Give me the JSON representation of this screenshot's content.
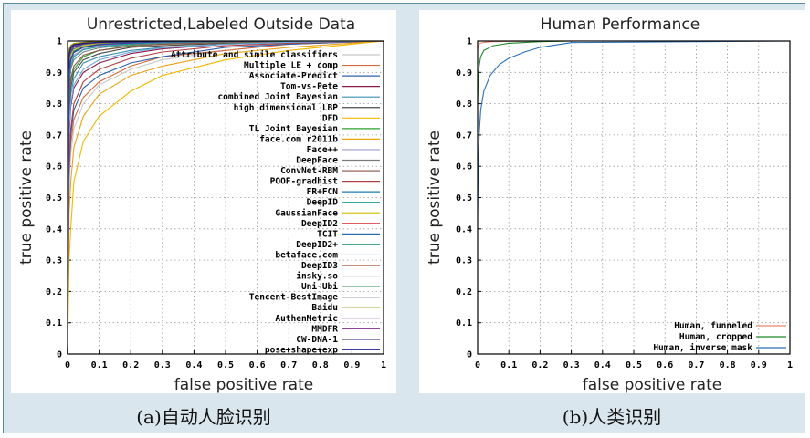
{
  "captions": {
    "a": "(a)自动人脸识别",
    "b": "(b)人类识别"
  },
  "chart_data": [
    {
      "type": "line",
      "title": "Unrestricted,Labeled Outside Data",
      "xlabel": "false positive rate",
      "ylabel": "true positive rate",
      "xlim": [
        0,
        1
      ],
      "ylim": [
        0,
        1
      ],
      "x_ticks": [
        "0",
        "0.1",
        "0.2",
        "0.3",
        "0.4",
        "0.5",
        "0.6",
        "0.7",
        "0.8",
        "0.9",
        "1"
      ],
      "y_ticks": [
        "0",
        "0.1",
        "0.2",
        "0.3",
        "0.4",
        "0.5",
        "0.6",
        "0.7",
        "0.8",
        "0.9",
        "1"
      ],
      "grid": true,
      "legend_position": "right",
      "series": [
        {
          "name": "Attribute and simile classifiers",
          "color": "#c8c8c8",
          "x": [
            0,
            0.005,
            0.01,
            0.02,
            0.05,
            0.1,
            0.2,
            0.3,
            0.5,
            0.7,
            1
          ],
          "y": [
            0,
            0.55,
            0.64,
            0.72,
            0.8,
            0.86,
            0.91,
            0.94,
            0.97,
            0.99,
            1
          ]
        },
        {
          "name": "Multiple LE + comp",
          "color": "#d46a3c",
          "x": [
            0,
            0.005,
            0.01,
            0.02,
            0.05,
            0.1,
            0.2,
            0.3,
            0.5,
            0.7,
            1
          ],
          "y": [
            0,
            0.58,
            0.67,
            0.75,
            0.82,
            0.87,
            0.92,
            0.95,
            0.97,
            0.99,
            1
          ]
        },
        {
          "name": "Associate-Predict",
          "color": "#2f5fa8",
          "x": [
            0,
            0.005,
            0.01,
            0.02,
            0.05,
            0.1,
            0.2,
            0.3,
            0.5,
            0.7,
            1
          ],
          "y": [
            0,
            0.6,
            0.7,
            0.78,
            0.85,
            0.89,
            0.93,
            0.95,
            0.98,
            0.99,
            1
          ]
        },
        {
          "name": "Tom-vs-Pete",
          "color": "#8b1a4a",
          "x": [
            0,
            0.005,
            0.01,
            0.02,
            0.05,
            0.1,
            0.2,
            0.3,
            0.5,
            0.7,
            1
          ],
          "y": [
            0,
            0.7,
            0.79,
            0.85,
            0.9,
            0.93,
            0.96,
            0.975,
            0.99,
            0.995,
            1
          ]
        },
        {
          "name": "combined Joint Bayesian",
          "color": "#3a8fb0",
          "x": [
            0,
            0.005,
            0.01,
            0.02,
            0.05,
            0.1,
            0.2,
            0.3,
            0.5,
            0.7,
            1
          ],
          "y": [
            0,
            0.75,
            0.83,
            0.88,
            0.93,
            0.95,
            0.97,
            0.98,
            0.99,
            0.996,
            1
          ]
        },
        {
          "name": "high dimensional LBP",
          "color": "#4a4a4a",
          "x": [
            0,
            0.005,
            0.01,
            0.02,
            0.05,
            0.1,
            0.2,
            0.3,
            0.5,
            0.7,
            1
          ],
          "y": [
            0,
            0.78,
            0.85,
            0.9,
            0.94,
            0.96,
            0.98,
            0.985,
            0.993,
            0.997,
            1
          ]
        },
        {
          "name": "DFD",
          "color": "#f2b800",
          "x": [
            0,
            0.005,
            0.01,
            0.02,
            0.05,
            0.1,
            0.2,
            0.3,
            0.5,
            0.7,
            1
          ],
          "y": [
            0,
            0.3,
            0.4,
            0.55,
            0.68,
            0.76,
            0.84,
            0.89,
            0.94,
            0.97,
            1
          ]
        },
        {
          "name": "TL Joint Bayesian",
          "color": "#2ca02c",
          "x": [
            0,
            0.005,
            0.01,
            0.02,
            0.05,
            0.1,
            0.2,
            0.3,
            0.5,
            0.7,
            1
          ],
          "y": [
            0,
            0.8,
            0.87,
            0.91,
            0.95,
            0.97,
            0.985,
            0.99,
            0.995,
            0.998,
            1
          ]
        },
        {
          "name": "face.com r2011b",
          "color": "#e8a317",
          "x": [
            0,
            0.005,
            0.01,
            0.02,
            0.05,
            0.1,
            0.2,
            0.3,
            0.5,
            0.7,
            1
          ],
          "y": [
            0,
            0.45,
            0.55,
            0.66,
            0.76,
            0.83,
            0.89,
            0.92,
            0.96,
            0.98,
            1
          ]
        },
        {
          "name": "Face++",
          "color": "#9a9ad0",
          "x": [
            0,
            0.005,
            0.01,
            0.02,
            0.05,
            0.1,
            0.2,
            0.3,
            0.5,
            0.7,
            1
          ],
          "y": [
            0,
            0.88,
            0.93,
            0.955,
            0.975,
            0.985,
            0.992,
            0.995,
            0.998,
            0.999,
            1
          ]
        },
        {
          "name": "DeepFace",
          "color": "#7a7a7a",
          "x": [
            0,
            0.005,
            0.01,
            0.02,
            0.05,
            0.1,
            0.2,
            0.3,
            0.5,
            0.7,
            1
          ],
          "y": [
            0,
            0.85,
            0.91,
            0.94,
            0.965,
            0.978,
            0.988,
            0.993,
            0.997,
            0.999,
            1
          ]
        },
        {
          "name": "ConvNet-RBM",
          "color": "#8c564b",
          "x": [
            0,
            0.005,
            0.01,
            0.02,
            0.05,
            0.1,
            0.2,
            0.3,
            0.5,
            0.7,
            1
          ],
          "y": [
            0,
            0.82,
            0.88,
            0.92,
            0.955,
            0.97,
            0.983,
            0.99,
            0.995,
            0.998,
            1
          ]
        },
        {
          "name": "POOF-gradhist",
          "color": "#b04040",
          "x": [
            0,
            0.005,
            0.01,
            0.02,
            0.05,
            0.1,
            0.2,
            0.3,
            0.5,
            0.7,
            1
          ],
          "y": [
            0,
            0.62,
            0.72,
            0.8,
            0.87,
            0.91,
            0.945,
            0.965,
            0.985,
            0.993,
            1
          ]
        },
        {
          "name": "FR+FCN",
          "color": "#1f77b4",
          "x": [
            0,
            0.005,
            0.01,
            0.02,
            0.05,
            0.1,
            0.2,
            0.3,
            0.5,
            0.7,
            1
          ],
          "y": [
            0,
            0.93,
            0.96,
            0.975,
            0.988,
            0.993,
            0.997,
            0.998,
            0.999,
            1,
            1
          ]
        },
        {
          "name": "DeepID",
          "color": "#17a0a0",
          "x": [
            0,
            0.005,
            0.01,
            0.02,
            0.05,
            0.1,
            0.2,
            0.3,
            0.5,
            0.7,
            1
          ],
          "y": [
            0,
            0.87,
            0.92,
            0.95,
            0.972,
            0.982,
            0.991,
            0.995,
            0.998,
            0.999,
            1
          ]
        },
        {
          "name": "GaussianFace",
          "color": "#d4c21a",
          "x": [
            0,
            0.005,
            0.01,
            0.02,
            0.05,
            0.1,
            0.2,
            0.3,
            0.5,
            0.7,
            1
          ],
          "y": [
            0,
            0.92,
            0.955,
            0.972,
            0.986,
            0.992,
            0.996,
            0.998,
            0.999,
            1,
            1
          ]
        },
        {
          "name": "DeepID2",
          "color": "#d62728",
          "x": [
            0,
            0.005,
            0.01,
            0.02,
            0.05,
            0.1,
            0.2,
            0.3,
            0.5,
            0.7,
            1
          ],
          "y": [
            0,
            0.95,
            0.97,
            0.983,
            0.992,
            0.996,
            0.998,
            0.999,
            1,
            1,
            1
          ]
        },
        {
          "name": "TCIT",
          "color": "#2b6cb0",
          "x": [
            0,
            0.005,
            0.01,
            0.02,
            0.05,
            0.1,
            0.2,
            0.3,
            0.5,
            0.7,
            1
          ],
          "y": [
            0,
            0.94,
            0.965,
            0.98,
            0.99,
            0.995,
            0.998,
            0.999,
            1,
            1,
            1
          ]
        },
        {
          "name": "DeepID2+",
          "color": "#0f8a5f",
          "x": [
            0,
            0.005,
            0.01,
            0.02,
            0.05,
            0.1,
            0.2,
            0.3,
            0.5,
            0.7,
            1
          ],
          "y": [
            0,
            0.96,
            0.978,
            0.988,
            0.994,
            0.997,
            0.999,
            1,
            1,
            1,
            1
          ]
        },
        {
          "name": "betaface.com",
          "color": "#6fa8dc",
          "x": [
            0,
            0.005,
            0.01,
            0.02,
            0.05,
            0.1,
            0.2,
            0.3,
            0.5,
            0.7,
            1
          ],
          "y": [
            0,
            0.72,
            0.8,
            0.86,
            0.91,
            0.94,
            0.965,
            0.978,
            0.99,
            0.996,
            1
          ]
        },
        {
          "name": "DeepID3",
          "color": "#a0522d",
          "x": [
            0,
            0.005,
            0.01,
            0.02,
            0.05,
            0.1,
            0.2,
            0.3,
            0.5,
            0.7,
            1
          ],
          "y": [
            0,
            0.965,
            0.98,
            0.99,
            0.995,
            0.998,
            0.999,
            1,
            1,
            1,
            1
          ]
        },
        {
          "name": "insky.so",
          "color": "#555555",
          "x": [
            0,
            0.005,
            0.01,
            0.02,
            0.05,
            0.1,
            0.2,
            0.3,
            0.5,
            0.7,
            1
          ],
          "y": [
            0,
            0.9,
            0.94,
            0.965,
            0.98,
            0.988,
            0.994,
            0.997,
            0.999,
            1,
            1
          ]
        },
        {
          "name": "Uni-Ubi",
          "color": "#2e8b57",
          "x": [
            0,
            0.005,
            0.01,
            0.02,
            0.05,
            0.1,
            0.2,
            0.3,
            0.5,
            0.7,
            1
          ],
          "y": [
            0,
            0.91,
            0.945,
            0.968,
            0.982,
            0.99,
            0.995,
            0.997,
            0.999,
            1,
            1
          ]
        },
        {
          "name": "Tencent-BestImage",
          "color": "#3c3c9c",
          "x": [
            0,
            0.005,
            0.01,
            0.02,
            0.05,
            0.1,
            0.2,
            0.3,
            0.5,
            0.7,
            1
          ],
          "y": [
            0,
            0.97,
            0.983,
            0.99,
            0.995,
            0.998,
            0.999,
            1,
            1,
            1,
            1
          ]
        },
        {
          "name": "Baidu",
          "color": "#8a8a00",
          "x": [
            0,
            0.005,
            0.01,
            0.02,
            0.05,
            0.1,
            0.2,
            0.3,
            0.5,
            0.7,
            1
          ],
          "y": [
            0,
            0.975,
            0.986,
            0.992,
            0.996,
            0.998,
            0.999,
            1,
            1,
            1,
            1
          ]
        },
        {
          "name": "AuthenMetric",
          "color": "#b58ad0",
          "x": [
            0,
            0.005,
            0.01,
            0.02,
            0.05,
            0.1,
            0.2,
            0.3,
            0.5,
            0.7,
            1
          ],
          "y": [
            0,
            0.955,
            0.975,
            0.985,
            0.993,
            0.996,
            0.998,
            0.999,
            1,
            1,
            1
          ]
        },
        {
          "name": "MMDFR",
          "color": "#7b2d8b",
          "x": [
            0,
            0.005,
            0.01,
            0.02,
            0.05,
            0.1,
            0.2,
            0.3,
            0.5,
            0.7,
            1
          ],
          "y": [
            0,
            0.945,
            0.97,
            0.982,
            0.991,
            0.995,
            0.998,
            0.999,
            1,
            1,
            1
          ]
        },
        {
          "name": "CW-DNA-1",
          "color": "#1a1a6e",
          "x": [
            0,
            0.005,
            0.01,
            0.02,
            0.05,
            0.1,
            0.2,
            0.3,
            0.5,
            0.7,
            1
          ],
          "y": [
            0,
            0.958,
            0.977,
            0.987,
            0.993,
            0.996,
            0.998,
            0.999,
            1,
            1,
            1
          ]
        },
        {
          "name": "pose+shape+exp",
          "color": "#3a3aa0",
          "x": [
            0,
            0.005,
            0.01,
            0.02,
            0.05,
            0.1,
            0.2,
            0.3,
            0.5,
            0.7,
            1
          ],
          "y": [
            0,
            0.9,
            0.94,
            0.963,
            0.98,
            0.989,
            0.994,
            0.997,
            0.999,
            1,
            1
          ]
        }
      ]
    },
    {
      "type": "line",
      "title": "Human Performance",
      "xlabel": "false positive rate",
      "ylabel": "true positive rate",
      "xlim": [
        0,
        1
      ],
      "ylim": [
        0,
        1
      ],
      "x_ticks": [
        "0",
        "0.1",
        "0.2",
        "0.3",
        "0.4",
        "0.5",
        "0.6",
        "0.7",
        "0.8",
        "0.9",
        "1"
      ],
      "y_ticks": [
        "0",
        "0.1",
        "0.2",
        "0.3",
        "0.4",
        "0.5",
        "0.6",
        "0.7",
        "0.8",
        "0.9",
        "1"
      ],
      "grid": true,
      "legend_position": "bottom-right",
      "series": [
        {
          "name": "Human, funneled",
          "color": "#e8886a",
          "x": [
            0,
            0.002,
            0.005,
            0.01,
            0.02,
            0.05,
            0.1,
            0.3,
            1
          ],
          "y": [
            0.97,
            0.985,
            0.99,
            0.993,
            0.996,
            0.998,
            0.999,
            1,
            1
          ]
        },
        {
          "name": "Human, cropped",
          "color": "#1f8a2a",
          "x": [
            0,
            0.002,
            0.005,
            0.01,
            0.02,
            0.05,
            0.1,
            0.2,
            0.3,
            1
          ],
          "y": [
            0.8,
            0.88,
            0.92,
            0.95,
            0.97,
            0.985,
            0.993,
            0.998,
            1,
            1
          ]
        },
        {
          "name": "Human, inverse mask",
          "color": "#2a6fb8",
          "x": [
            0,
            0.002,
            0.005,
            0.01,
            0.02,
            0.04,
            0.07,
            0.1,
            0.15,
            0.2,
            0.3,
            1
          ],
          "y": [
            0.45,
            0.6,
            0.7,
            0.78,
            0.84,
            0.89,
            0.925,
            0.945,
            0.965,
            0.98,
            0.995,
            1
          ]
        }
      ]
    }
  ]
}
